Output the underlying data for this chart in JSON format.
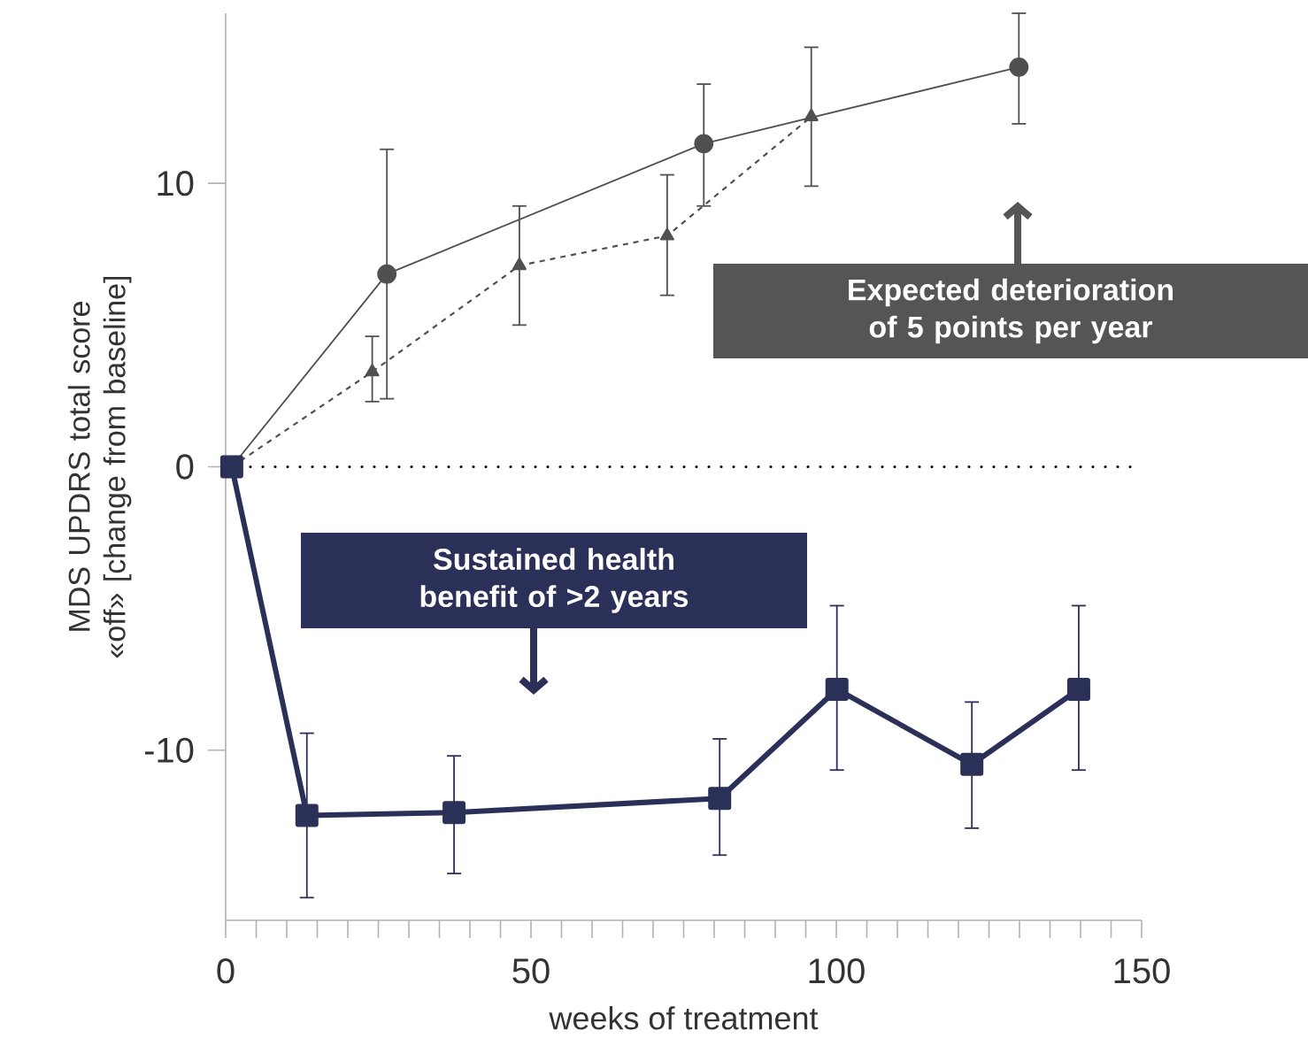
{
  "chart_data": {
    "type": "line",
    "xlabel": "weeks of treatment",
    "ylabel": "MDS UPDRS total score «off» [change from baseline]",
    "xlim": [
      0,
      150
    ],
    "xticks": [
      0,
      50,
      100,
      150
    ],
    "ylim": [
      -16,
      16
    ],
    "yticks": [
      -10,
      0,
      10
    ],
    "grid": false,
    "series": [
      {
        "color": "#505050",
        "marker": "circle",
        "line_style": "solid",
        "x": [
          1,
          26.4,
          78.3,
          129.9
        ],
        "values": [
          0,
          6.8,
          11.4,
          14.1
        ],
        "errors": [
          null,
          [
            2.4,
            11.2
          ],
          [
            9.2,
            13.5
          ],
          [
            12.1,
            16.0
          ]
        ]
      },
      {
        "color": "#505050",
        "marker": "triangle",
        "line_style": "dashed",
        "x": [
          1,
          24,
          48.1,
          72.3,
          95.9
        ],
        "values": [
          0,
          3.35,
          7.1,
          8.15,
          12.35
        ],
        "errors": [
          null,
          [
            2.3,
            4.6
          ],
          [
            5.0,
            9.2
          ],
          [
            6.05,
            10.3
          ],
          [
            9.9,
            14.8
          ]
        ]
      },
      {
        "color": "#2b3058",
        "marker": "square",
        "line_style": "solid",
        "x": [
          1,
          13.3,
          37.4,
          80.9,
          100.1,
          122.2,
          139.7
        ],
        "values": [
          0,
          -12.3,
          -12.2,
          -11.7,
          -7.85,
          -10.5,
          -7.85
        ],
        "errors": [
          null,
          [
            -15.2,
            -9.4
          ],
          [
            -14.35,
            -10.2
          ],
          [
            -13.7,
            -9.6
          ],
          [
            -10.7,
            -4.9
          ],
          [
            -12.75,
            -8.3
          ],
          [
            -10.7,
            -4.9
          ]
        ]
      }
    ],
    "ref_lines": [
      {
        "axis": "y",
        "value": 0,
        "color": "#000000",
        "line_style": "dotted"
      }
    ],
    "annotations": [
      "Expected deterioration of 5 points per year",
      "Sustained health benefit of >2 years"
    ]
  }
}
